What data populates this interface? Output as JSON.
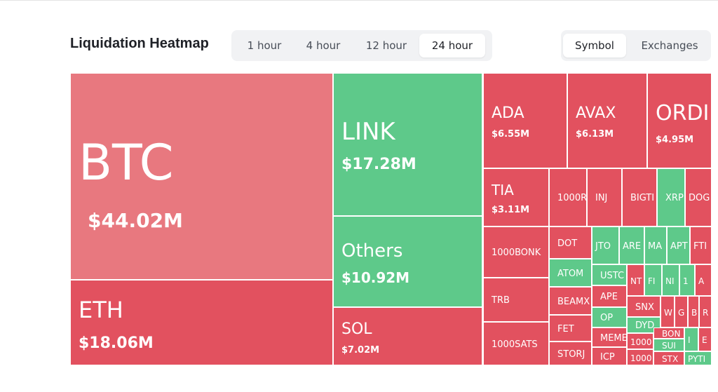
{
  "header": {
    "title": "Liquidation Heatmap"
  },
  "time_tabs": [
    "1 hour",
    "4 hour",
    "12 hour",
    "24 hour"
  ],
  "view_tabs": [
    "Symbol",
    "Exchanges"
  ],
  "tiles": [
    {
      "label": "BTC",
      "value": "$44.02M"
    },
    {
      "label": "ETH",
      "value": "$18.06M"
    },
    {
      "label": "LINK",
      "value": "$17.28M"
    },
    {
      "label": "Others",
      "value": "$10.92M"
    },
    {
      "label": "SOL",
      "value": "$7.02M"
    },
    {
      "label": "ADA",
      "value": "$6.55M"
    },
    {
      "label": "AVAX",
      "value": "$6.13M"
    },
    {
      "label": "ORDI",
      "value": "$4.95M"
    },
    {
      "label": "TIA",
      "value": "$3.11M"
    },
    {
      "label": "1000BONK"
    },
    {
      "label": "TRB"
    },
    {
      "label": "1000SATS"
    },
    {
      "label": "1000R"
    },
    {
      "label": "INJ"
    },
    {
      "label": "BIGTI"
    },
    {
      "label": "XRP"
    },
    {
      "label": "DOG"
    },
    {
      "label": "DOT"
    },
    {
      "label": "ATOM"
    },
    {
      "label": "BEAMX"
    },
    {
      "label": "FET"
    },
    {
      "label": "STORJ"
    },
    {
      "label": "JTO"
    },
    {
      "label": "ARE"
    },
    {
      "label": "MA"
    },
    {
      "label": "APT"
    },
    {
      "label": "FTI"
    },
    {
      "label": "USTC"
    },
    {
      "label": "NT"
    },
    {
      "label": "FI"
    },
    {
      "label": "NI"
    },
    {
      "label": "1"
    },
    {
      "label": "A"
    },
    {
      "label": "APE"
    },
    {
      "label": "OP"
    },
    {
      "label": "MEME"
    },
    {
      "label": "ICP"
    },
    {
      "label": "SNX"
    },
    {
      "label": "W"
    },
    {
      "label": "G"
    },
    {
      "label": "B"
    },
    {
      "label": "R"
    },
    {
      "label": "DYD"
    },
    {
      "label": "1000"
    },
    {
      "label": "1000"
    },
    {
      "label": "BON"
    },
    {
      "label": "SUI"
    },
    {
      "label": "STX"
    },
    {
      "label": "I"
    },
    {
      "label": "E"
    },
    {
      "label": "PYTI"
    }
  ]
}
